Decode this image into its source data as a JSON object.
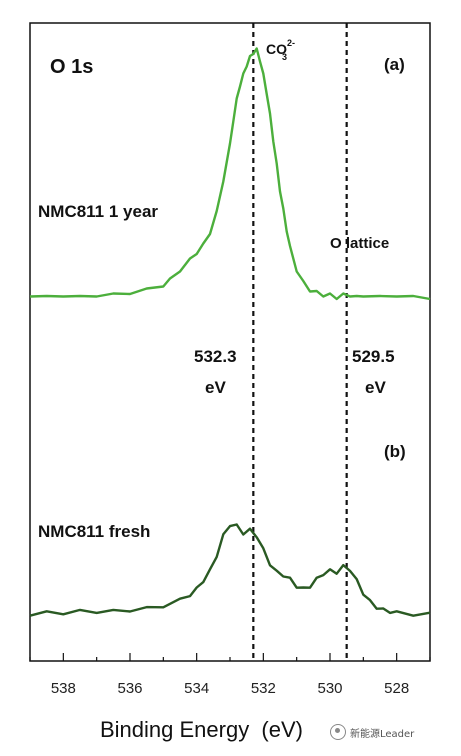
{
  "chart_data": {
    "type": "line",
    "xlabel": "Binding Energy  (eV)",
    "x_reversed": true,
    "xlim": [
      539,
      527
    ],
    "xticks": [
      538,
      536,
      534,
      532,
      530,
      528
    ],
    "grid": false,
    "panel_labels": [
      "(a)",
      "(b)"
    ],
    "corner_label": "O 1s",
    "annotations": {
      "co3": {
        "base": "CO",
        "sup": "2-",
        "sub": "3"
      },
      "o_lattice": "O lattice",
      "v1_value": "532.3",
      "v1_unit": "eV",
      "v2_value": "529.5",
      "v2_unit": "eV"
    },
    "reference_lines": [
      532.3,
      529.5
    ],
    "series": [
      {
        "name": "NMC811 1 year",
        "color": "#4caf3c",
        "x": [
          539.0,
          538.5,
          538.0,
          537.5,
          537.0,
          536.5,
          536.0,
          535.5,
          535.0,
          534.8,
          534.5,
          534.2,
          534.0,
          533.8,
          533.6,
          533.4,
          533.2,
          533.0,
          532.9,
          532.8,
          532.7,
          532.6,
          532.5,
          532.4,
          532.3,
          532.2,
          532.1,
          532.0,
          531.9,
          531.8,
          531.7,
          531.6,
          531.5,
          531.4,
          531.3,
          531.2,
          531.0,
          530.8,
          530.6,
          530.4,
          530.2,
          530.0,
          529.8,
          529.6,
          529.4,
          529.2,
          529.0,
          528.5,
          528.0,
          527.5,
          527.0
        ],
        "y": [
          0.02,
          0.01,
          0.02,
          0.01,
          0.02,
          0.02,
          0.03,
          0.04,
          0.06,
          0.08,
          0.12,
          0.16,
          0.19,
          0.22,
          0.27,
          0.35,
          0.48,
          0.62,
          0.72,
          0.8,
          0.86,
          0.9,
          0.94,
          0.97,
          0.99,
          1.0,
          0.96,
          0.9,
          0.83,
          0.74,
          0.64,
          0.54,
          0.44,
          0.36,
          0.28,
          0.21,
          0.12,
          0.07,
          0.04,
          0.03,
          0.02,
          0.02,
          0.01,
          0.02,
          0.02,
          0.01,
          0.02,
          0.01,
          0.02,
          0.01,
          0.01
        ]
      },
      {
        "name": "NMC811 fresh",
        "color": "#2a5a23",
        "x": [
          539.0,
          538.5,
          538.0,
          537.5,
          537.0,
          536.5,
          536.0,
          535.5,
          535.0,
          534.5,
          534.2,
          534.0,
          533.8,
          533.6,
          533.4,
          533.2,
          533.0,
          532.8,
          532.6,
          532.4,
          532.2,
          532.0,
          531.8,
          531.6,
          531.4,
          531.2,
          531.0,
          530.8,
          530.6,
          530.4,
          530.2,
          530.0,
          529.8,
          529.6,
          529.4,
          529.2,
          529.0,
          528.8,
          528.6,
          528.4,
          528.2,
          528.0,
          527.5,
          527.0
        ],
        "y": [
          0.02,
          0.03,
          0.03,
          0.04,
          0.04,
          0.04,
          0.05,
          0.06,
          0.08,
          0.12,
          0.16,
          0.2,
          0.26,
          0.33,
          0.44,
          0.58,
          0.66,
          0.65,
          0.6,
          0.62,
          0.58,
          0.48,
          0.38,
          0.32,
          0.3,
          0.27,
          0.22,
          0.2,
          0.22,
          0.27,
          0.31,
          0.33,
          0.32,
          0.36,
          0.34,
          0.26,
          0.17,
          0.11,
          0.07,
          0.05,
          0.04,
          0.03,
          0.02,
          0.02
        ]
      }
    ]
  },
  "watermark": "新能源Leader"
}
